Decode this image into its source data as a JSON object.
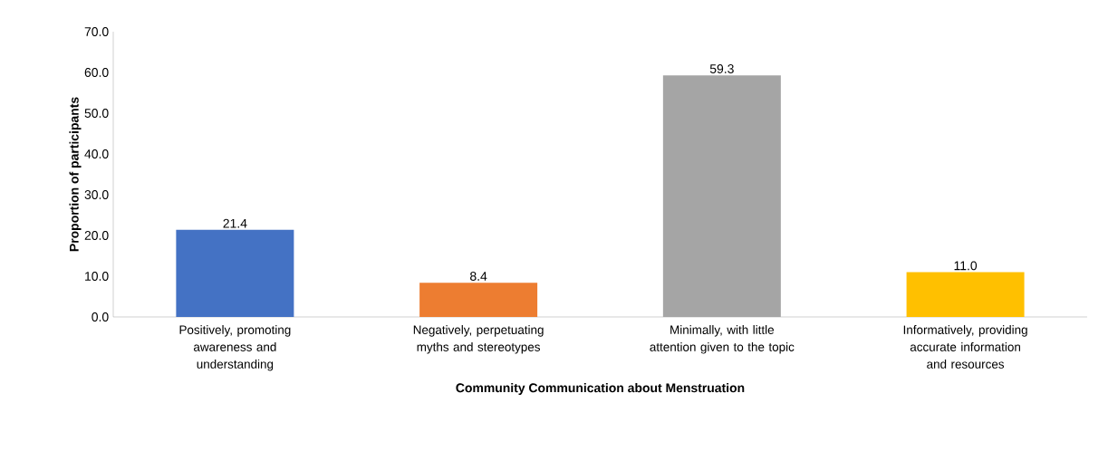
{
  "chart_data": {
    "type": "bar",
    "xlabel": "Community Communication about Menstruation",
    "ylabel": "Proportion of participants",
    "categories": [
      "Positively, promoting awareness and understanding",
      "Negatively, perpetuating myths and stereotypes",
      "Minimally, with little attention given to the topic",
      "Informatively, providing accurate information and resources"
    ],
    "values": [
      21.4,
      8.4,
      59.3,
      11.0
    ],
    "colors": [
      "#4472c4",
      "#ed7d31",
      "#a5a5a5",
      "#ffc000"
    ],
    "value_labels": [
      "21.4",
      "8.4",
      "59.3",
      "11.0"
    ],
    "ylim": [
      0,
      70
    ],
    "yticks": [
      {
        "value": 0,
        "label": "0.0"
      },
      {
        "value": 10,
        "label": "10.0"
      },
      {
        "value": 20,
        "label": "20.0"
      },
      {
        "value": 30,
        "label": "30.0"
      },
      {
        "value": 40,
        "label": "40.0"
      },
      {
        "value": 50,
        "label": "50.0"
      },
      {
        "value": 60,
        "label": "60.0"
      },
      {
        "value": 70,
        "label": "70.0"
      }
    ],
    "grid": false
  }
}
